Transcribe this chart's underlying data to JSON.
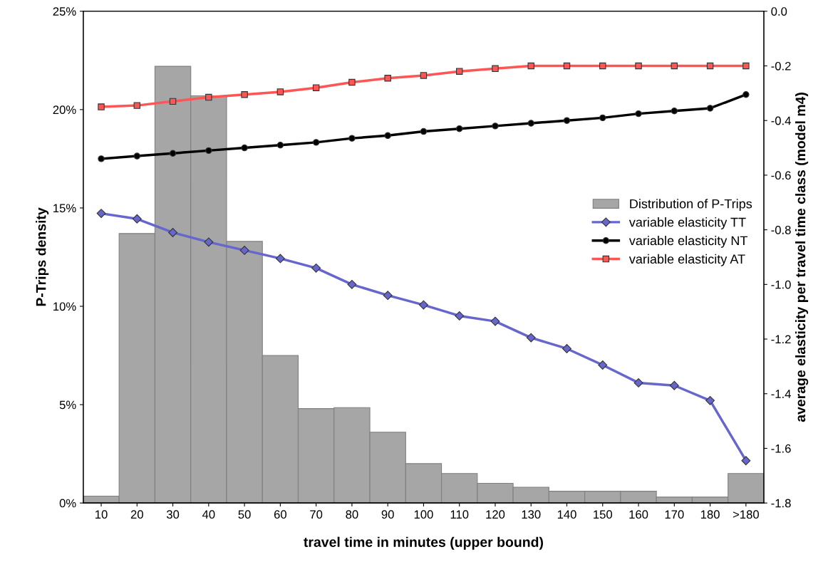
{
  "chart_data": {
    "type": "bar",
    "xlabel": "travel time in minutes (upper bound)",
    "ylabel": "P-Trips density",
    "y2label": "average elasticity per travel time class (model m4)",
    "categories": [
      "10",
      "20",
      "30",
      "40",
      "50",
      "60",
      "70",
      "80",
      "90",
      "100",
      "110",
      "120",
      "130",
      "140",
      "150",
      "160",
      "170",
      "180",
      ">180"
    ],
    "ylim": [
      0,
      25
    ],
    "yticks": [
      {
        "value": 0,
        "label": "0%"
      },
      {
        "value": 5,
        "label": "5%"
      },
      {
        "value": 10,
        "label": "10%"
      },
      {
        "value": 15,
        "label": "15%"
      },
      {
        "value": 20,
        "label": "20%"
      },
      {
        "value": 25,
        "label": "25%"
      }
    ],
    "y2lim": [
      -1.8,
      0
    ],
    "y2ticks": [
      {
        "value": -1.8,
        "label": "-1.8"
      },
      {
        "value": -1.6,
        "label": "-1.6"
      },
      {
        "value": -1.4,
        "label": "-1.4"
      },
      {
        "value": -1.2,
        "label": "-1.2"
      },
      {
        "value": -1.0,
        "label": "-1.0"
      },
      {
        "value": -0.8,
        "label": "-0.8"
      },
      {
        "value": -0.6,
        "label": "-0.6"
      },
      {
        "value": -0.4,
        "label": "-0.4"
      },
      {
        "value": -0.2,
        "label": "-0.2"
      },
      {
        "value": 0,
        "label": "0.0"
      }
    ],
    "grid": false,
    "legend": "center right",
    "series": [
      {
        "name": "Distribution of P-Trips",
        "color": "#a6a6a6",
        "values": [
          0.35,
          13.7,
          22.2,
          20.7,
          13.3,
          7.5,
          4.8,
          4.85,
          3.6,
          2.0,
          1.5,
          1.0,
          0.8,
          0.6,
          0.6,
          0.6,
          0.3,
          0.3,
          1.5
        ]
      },
      {
        "name": "variable elasticity TT",
        "type": "line",
        "axis": "y2",
        "marker": "diamond",
        "color": "#6666cc",
        "values": [
          -0.74,
          -0.76,
          -0.81,
          -0.845,
          -0.875,
          -0.905,
          -0.94,
          -1.0,
          -1.04,
          -1.075,
          -1.115,
          -1.135,
          -1.195,
          -1.235,
          -1.295,
          -1.36,
          -1.37,
          -1.425,
          -1.645
        ]
      },
      {
        "name": "variable elasticity NT",
        "type": "line",
        "axis": "y2",
        "marker": "circle",
        "color": "#000000",
        "values": [
          -0.54,
          -0.53,
          -0.52,
          -0.51,
          -0.5,
          -0.49,
          -0.48,
          -0.465,
          -0.455,
          -0.44,
          -0.43,
          -0.42,
          -0.41,
          -0.4,
          -0.39,
          -0.375,
          -0.365,
          -0.355,
          -0.305
        ]
      },
      {
        "name": "variable elasticity AT",
        "type": "line",
        "axis": "y2",
        "marker": "square",
        "color": "#ff5555",
        "values": [
          -0.35,
          -0.345,
          -0.33,
          -0.315,
          -0.305,
          -0.295,
          -0.28,
          -0.26,
          -0.245,
          -0.235,
          -0.22,
          -0.21,
          -0.2,
          -0.2,
          -0.2,
          -0.2,
          -0.2,
          -0.2,
          -0.2
        ]
      }
    ]
  }
}
